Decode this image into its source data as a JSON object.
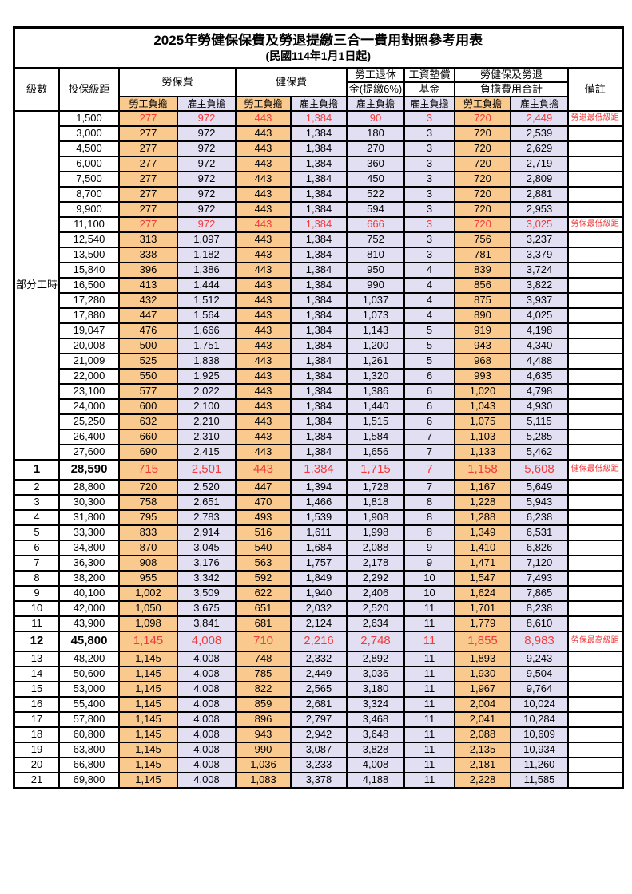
{
  "title": "2025年勞健保保費及勞退提繳三合一費用對照參考用表",
  "subtitle": "(民國114年1月1日起)",
  "colors": {
    "employee_bg": "#f9c98e",
    "employer_bg": "#e2dff2",
    "highlight_red": "#f23b3b"
  },
  "header": {
    "level": "級數",
    "bracket": "投保級距",
    "labor_insurance": "勞保費",
    "health_insurance": "健保費",
    "pension_line1": "勞工退休",
    "pension_line2": "金(提繳6%)",
    "wage_fund_line1": "工資墊償",
    "wage_fund_line2": "基金",
    "total_line1": "勞健保及勞退",
    "total_line2": "負擔費用合計",
    "remark": "備註",
    "sub_employee": "勞工負擔",
    "sub_employer": "雇主負擔"
  },
  "part_time": {
    "label": "部分工時",
    "rowspan": 23
  },
  "rows": [
    {
      "level": "",
      "bracket": "1,500",
      "values": [
        "277",
        "972",
        "443",
        "1,384",
        "90",
        "3",
        "720",
        "2,449"
      ],
      "remark": "勞退最低級距",
      "style": "red"
    },
    {
      "level": "",
      "bracket": "3,000",
      "values": [
        "277",
        "972",
        "443",
        "1,384",
        "180",
        "3",
        "720",
        "2,539"
      ],
      "remark": "",
      "style": "normal"
    },
    {
      "level": "",
      "bracket": "4,500",
      "values": [
        "277",
        "972",
        "443",
        "1,384",
        "270",
        "3",
        "720",
        "2,629"
      ],
      "remark": "",
      "style": "normal"
    },
    {
      "level": "",
      "bracket": "6,000",
      "values": [
        "277",
        "972",
        "443",
        "1,384",
        "360",
        "3",
        "720",
        "2,719"
      ],
      "remark": "",
      "style": "normal"
    },
    {
      "level": "",
      "bracket": "7,500",
      "values": [
        "277",
        "972",
        "443",
        "1,384",
        "450",
        "3",
        "720",
        "2,809"
      ],
      "remark": "",
      "style": "normal"
    },
    {
      "level": "",
      "bracket": "8,700",
      "values": [
        "277",
        "972",
        "443",
        "1,384",
        "522",
        "3",
        "720",
        "2,881"
      ],
      "remark": "",
      "style": "normal"
    },
    {
      "level": "",
      "bracket": "9,900",
      "values": [
        "277",
        "972",
        "443",
        "1,384",
        "594",
        "3",
        "720",
        "2,953"
      ],
      "remark": "",
      "style": "normal"
    },
    {
      "level": "",
      "bracket": "11,100",
      "values": [
        "277",
        "972",
        "443",
        "1,384",
        "666",
        "3",
        "720",
        "3,025"
      ],
      "remark": "勞保最低級距",
      "style": "red"
    },
    {
      "level": "",
      "bracket": "12,540",
      "values": [
        "313",
        "1,097",
        "443",
        "1,384",
        "752",
        "3",
        "756",
        "3,237"
      ],
      "remark": "",
      "style": "normal"
    },
    {
      "level": "",
      "bracket": "13,500",
      "values": [
        "338",
        "1,182",
        "443",
        "1,384",
        "810",
        "3",
        "781",
        "3,379"
      ],
      "remark": "",
      "style": "normal"
    },
    {
      "level": "",
      "bracket": "15,840",
      "values": [
        "396",
        "1,386",
        "443",
        "1,384",
        "950",
        "4",
        "839",
        "3,724"
      ],
      "remark": "",
      "style": "normal"
    },
    {
      "level": "",
      "bracket": "16,500",
      "values": [
        "413",
        "1,444",
        "443",
        "1,384",
        "990",
        "4",
        "856",
        "3,822"
      ],
      "remark": "",
      "style": "normal"
    },
    {
      "level": "",
      "bracket": "17,280",
      "values": [
        "432",
        "1,512",
        "443",
        "1,384",
        "1,037",
        "4",
        "875",
        "3,937"
      ],
      "remark": "",
      "style": "normal"
    },
    {
      "level": "",
      "bracket": "17,880",
      "values": [
        "447",
        "1,564",
        "443",
        "1,384",
        "1,073",
        "4",
        "890",
        "4,025"
      ],
      "remark": "",
      "style": "normal"
    },
    {
      "level": "",
      "bracket": "19,047",
      "values": [
        "476",
        "1,666",
        "443",
        "1,384",
        "1,143",
        "5",
        "919",
        "4,198"
      ],
      "remark": "",
      "style": "normal"
    },
    {
      "level": "",
      "bracket": "20,008",
      "values": [
        "500",
        "1,751",
        "443",
        "1,384",
        "1,200",
        "5",
        "943",
        "4,340"
      ],
      "remark": "",
      "style": "normal"
    },
    {
      "level": "",
      "bracket": "21,009",
      "values": [
        "525",
        "1,838",
        "443",
        "1,384",
        "1,261",
        "5",
        "968",
        "4,488"
      ],
      "remark": "",
      "style": "normal"
    },
    {
      "level": "",
      "bracket": "22,000",
      "values": [
        "550",
        "1,925",
        "443",
        "1,384",
        "1,320",
        "6",
        "993",
        "4,635"
      ],
      "remark": "",
      "style": "normal"
    },
    {
      "level": "",
      "bracket": "23,100",
      "values": [
        "577",
        "2,022",
        "443",
        "1,384",
        "1,386",
        "6",
        "1,020",
        "4,798"
      ],
      "remark": "",
      "style": "normal"
    },
    {
      "level": "",
      "bracket": "24,000",
      "values": [
        "600",
        "2,100",
        "443",
        "1,384",
        "1,440",
        "6",
        "1,043",
        "4,930"
      ],
      "remark": "",
      "style": "normal"
    },
    {
      "level": "",
      "bracket": "25,250",
      "values": [
        "632",
        "2,210",
        "443",
        "1,384",
        "1,515",
        "6",
        "1,075",
        "5,115"
      ],
      "remark": "",
      "style": "normal"
    },
    {
      "level": "",
      "bracket": "26,400",
      "values": [
        "660",
        "2,310",
        "443",
        "1,384",
        "1,584",
        "7",
        "1,103",
        "5,285"
      ],
      "remark": "",
      "style": "normal"
    },
    {
      "level": "",
      "bracket": "27,600",
      "values": [
        "690",
        "2,415",
        "443",
        "1,384",
        "1,656",
        "7",
        "1,133",
        "5,462"
      ],
      "remark": "",
      "style": "normal"
    },
    {
      "level": "1",
      "bracket": "28,590",
      "values": [
        "715",
        "2,501",
        "443",
        "1,384",
        "1,715",
        "7",
        "1,158",
        "5,608"
      ],
      "remark": "健保最低級距",
      "style": "key"
    },
    {
      "level": "2",
      "bracket": "28,800",
      "values": [
        "720",
        "2,520",
        "447",
        "1,394",
        "1,728",
        "7",
        "1,167",
        "5,649"
      ],
      "remark": "",
      "style": "normal"
    },
    {
      "level": "3",
      "bracket": "30,300",
      "values": [
        "758",
        "2,651",
        "470",
        "1,466",
        "1,818",
        "8",
        "1,228",
        "5,943"
      ],
      "remark": "",
      "style": "normal"
    },
    {
      "level": "4",
      "bracket": "31,800",
      "values": [
        "795",
        "2,783",
        "493",
        "1,539",
        "1,908",
        "8",
        "1,288",
        "6,238"
      ],
      "remark": "",
      "style": "normal"
    },
    {
      "level": "5",
      "bracket": "33,300",
      "values": [
        "833",
        "2,914",
        "516",
        "1,611",
        "1,998",
        "8",
        "1,349",
        "6,531"
      ],
      "remark": "",
      "style": "normal"
    },
    {
      "level": "6",
      "bracket": "34,800",
      "values": [
        "870",
        "3,045",
        "540",
        "1,684",
        "2,088",
        "9",
        "1,410",
        "6,826"
      ],
      "remark": "",
      "style": "normal"
    },
    {
      "level": "7",
      "bracket": "36,300",
      "values": [
        "908",
        "3,176",
        "563",
        "1,757",
        "2,178",
        "9",
        "1,471",
        "7,120"
      ],
      "remark": "",
      "style": "normal"
    },
    {
      "level": "8",
      "bracket": "38,200",
      "values": [
        "955",
        "3,342",
        "592",
        "1,849",
        "2,292",
        "10",
        "1,547",
        "7,493"
      ],
      "remark": "",
      "style": "normal"
    },
    {
      "level": "9",
      "bracket": "40,100",
      "values": [
        "1,002",
        "3,509",
        "622",
        "1,940",
        "2,406",
        "10",
        "1,624",
        "7,865"
      ],
      "remark": "",
      "style": "normal"
    },
    {
      "level": "10",
      "bracket": "42,000",
      "values": [
        "1,050",
        "3,675",
        "651",
        "2,032",
        "2,520",
        "11",
        "1,701",
        "8,238"
      ],
      "remark": "",
      "style": "normal"
    },
    {
      "level": "11",
      "bracket": "43,900",
      "values": [
        "1,098",
        "3,841",
        "681",
        "2,124",
        "2,634",
        "11",
        "1,779",
        "8,610"
      ],
      "remark": "",
      "style": "normal"
    },
    {
      "level": "12",
      "bracket": "45,800",
      "values": [
        "1,145",
        "4,008",
        "710",
        "2,216",
        "2,748",
        "11",
        "1,855",
        "8,983"
      ],
      "remark": "勞保最高級距",
      "style": "key"
    },
    {
      "level": "13",
      "bracket": "48,200",
      "values": [
        "1,145",
        "4,008",
        "748",
        "2,332",
        "2,892",
        "11",
        "1,893",
        "9,243"
      ],
      "remark": "",
      "style": "normal"
    },
    {
      "level": "14",
      "bracket": "50,600",
      "values": [
        "1,145",
        "4,008",
        "785",
        "2,449",
        "3,036",
        "11",
        "1,930",
        "9,504"
      ],
      "remark": "",
      "style": "normal"
    },
    {
      "level": "15",
      "bracket": "53,000",
      "values": [
        "1,145",
        "4,008",
        "822",
        "2,565",
        "3,180",
        "11",
        "1,967",
        "9,764"
      ],
      "remark": "",
      "style": "normal"
    },
    {
      "level": "16",
      "bracket": "55,400",
      "values": [
        "1,145",
        "4,008",
        "859",
        "2,681",
        "3,324",
        "11",
        "2,004",
        "10,024"
      ],
      "remark": "",
      "style": "normal"
    },
    {
      "level": "17",
      "bracket": "57,800",
      "values": [
        "1,145",
        "4,008",
        "896",
        "2,797",
        "3,468",
        "11",
        "2,041",
        "10,284"
      ],
      "remark": "",
      "style": "normal"
    },
    {
      "level": "18",
      "bracket": "60,800",
      "values": [
        "1,145",
        "4,008",
        "943",
        "2,942",
        "3,648",
        "11",
        "2,088",
        "10,609"
      ],
      "remark": "",
      "style": "normal"
    },
    {
      "level": "19",
      "bracket": "63,800",
      "values": [
        "1,145",
        "4,008",
        "990",
        "3,087",
        "3,828",
        "11",
        "2,135",
        "10,934"
      ],
      "remark": "",
      "style": "normal"
    },
    {
      "level": "20",
      "bracket": "66,800",
      "values": [
        "1,145",
        "4,008",
        "1,036",
        "3,233",
        "4,008",
        "11",
        "2,181",
        "11,260"
      ],
      "remark": "",
      "style": "normal"
    },
    {
      "level": "21",
      "bracket": "69,800",
      "values": [
        "1,145",
        "4,008",
        "1,083",
        "3,378",
        "4,188",
        "11",
        "2,228",
        "11,585"
      ],
      "remark": "",
      "style": "normal"
    }
  ]
}
